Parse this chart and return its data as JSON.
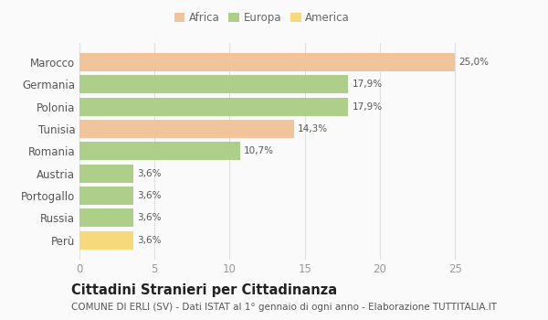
{
  "categories": [
    "Marocco",
    "Germania",
    "Polonia",
    "Tunisia",
    "Romania",
    "Austria",
    "Portogallo",
    "Russia",
    "Perù"
  ],
  "values": [
    25.0,
    17.9,
    17.9,
    14.3,
    10.7,
    3.6,
    3.6,
    3.6,
    3.6
  ],
  "labels": [
    "25,0%",
    "17,9%",
    "17,9%",
    "14,3%",
    "10,7%",
    "3,6%",
    "3,6%",
    "3,6%",
    "3,6%"
  ],
  "colors": [
    "#F2C49B",
    "#AECF8A",
    "#AECF8A",
    "#F2C49B",
    "#AECF8A",
    "#AECF8A",
    "#AECF8A",
    "#AECF8A",
    "#F5D97A"
  ],
  "continent": [
    "Africa",
    "Europa",
    "Europa",
    "Africa",
    "Europa",
    "Europa",
    "Europa",
    "Europa",
    "America"
  ],
  "legend": {
    "Africa": "#F2C49B",
    "Europa": "#AECF8A",
    "America": "#F5D97A"
  },
  "xlim": [
    0,
    27.0
  ],
  "xticks": [
    0,
    5,
    10,
    15,
    20,
    25
  ],
  "title": "Cittadini Stranieri per Cittadinanza",
  "subtitle": "COMUNE DI ERLI (SV) - Dati ISTAT al 1° gennaio di ogni anno - Elaborazione TUTTITALIA.IT",
  "bg_color": "#FAFAFA",
  "grid_color": "#E0E0E0",
  "bar_height": 0.82,
  "label_fontsize": 7.5,
  "ytick_fontsize": 8.5,
  "xtick_fontsize": 8.5,
  "title_fontsize": 10.5,
  "subtitle_fontsize": 7.5,
  "legend_fontsize": 8.5
}
